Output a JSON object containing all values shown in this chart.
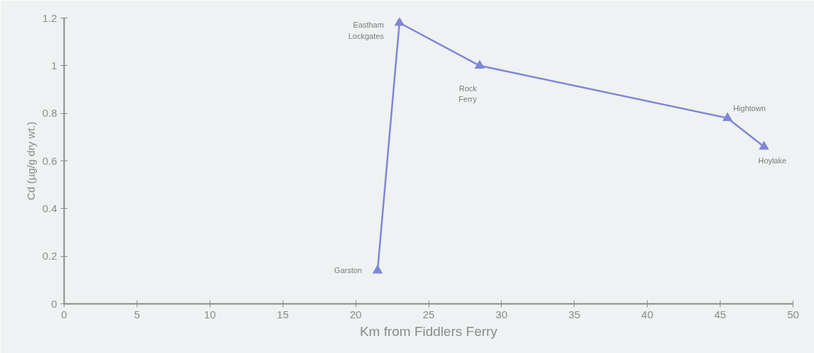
{
  "chart_data": {
    "type": "line",
    "xlabel": "Km from Fiddlers Ferry",
    "ylabel": "Cd (µg/g dry wt.)",
    "x": [
      21.5,
      23.0,
      28.5,
      45.5,
      48.0
    ],
    "series": [
      {
        "color": "#7f86d6",
        "values": [
          0.14,
          1.18,
          1.0,
          0.78,
          0.66
        ]
      }
    ],
    "xlim": [
      0,
      50
    ],
    "xticks": [
      0,
      5,
      10,
      15,
      20,
      25,
      30,
      35,
      40,
      45,
      50
    ],
    "ylim": [
      0,
      1.2
    ],
    "yticks": [
      0,
      {
        "value": 0.2,
        "label": "0.2"
      },
      {
        "value": 0.4,
        "label": "0.4"
      },
      {
        "value": 0.6,
        "label": "0.6"
      },
      {
        "value": 0.8,
        "label": "0.8"
      },
      {
        "value": 1,
        "label": "1"
      },
      {
        "value": 1.2,
        "label": "1.2"
      }
    ],
    "annotations": [
      {
        "text": "Garston",
        "x": 21.5,
        "y": 0.14
      },
      {
        "text": "Eastham\nLockgates",
        "x": 23.0,
        "y": 1.18
      },
      {
        "text": "Rock\nFerry",
        "x": 28.5,
        "y": 1.0
      },
      {
        "text": "Hightown",
        "x": 45.5,
        "y": 0.78
      },
      {
        "text": "Hoylake",
        "x": 48.0,
        "y": 0.66
      }
    ],
    "marker": "triangle",
    "grid": false
  }
}
